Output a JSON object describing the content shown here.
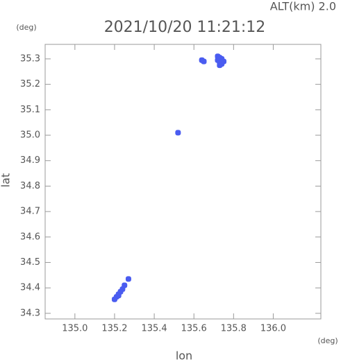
{
  "chart_data": {
    "type": "scatter",
    "title": "2021/10/20 11:21:12",
    "subtitle": "ALT(km) 2.0",
    "x_label": "lon",
    "y_label": "lat",
    "x_unit": "(deg)",
    "y_unit": "(deg)",
    "xlim": [
      134.85,
      136.24
    ],
    "ylim": [
      34.278,
      35.357
    ],
    "xticks": [
      {
        "value": 135,
        "label": "135.0"
      },
      135.2,
      135.4,
      135.6,
      135.8,
      {
        "value": 136,
        "label": "136.0"
      }
    ],
    "yticks": [
      34.3,
      34.4,
      34.5,
      34.6,
      34.7,
      34.8,
      34.9,
      {
        "value": 35,
        "label": "35.0"
      },
      35.1,
      35.2,
      35.3
    ],
    "color": "#4a5cf0",
    "x": [
      135.72,
      135.73,
      135.74,
      135.75,
      135.72,
      135.73,
      135.74,
      135.73,
      135.64,
      135.65,
      135.2,
      135.21,
      135.22,
      135.23,
      135.24,
      135.25,
      135.22,
      135.27,
      135.52
    ],
    "y": [
      35.31,
      35.305,
      35.3,
      35.29,
      35.295,
      35.285,
      35.28,
      35.275,
      35.295,
      35.29,
      34.355,
      34.365,
      34.375,
      34.385,
      34.395,
      34.41,
      34.37,
      34.435,
      35.01
    ]
  }
}
